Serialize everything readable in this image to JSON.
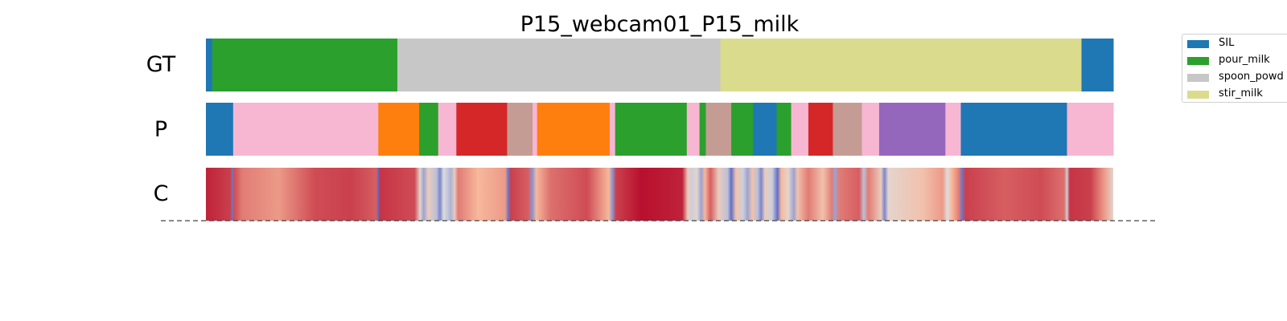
{
  "chart_data": {
    "type": "segmentation",
    "title": "P15_webcam01_P15_milk",
    "row_labels": {
      "gt": "GT",
      "pred": "P",
      "conf": "C"
    },
    "x_range": [
      0,
      1
    ],
    "legend": {
      "placement": "top-right, outside plot",
      "entries": [
        {
          "label": "SIL",
          "color": "#1f77b4"
        },
        {
          "label": "pour_milk",
          "color": "#2ca02c"
        },
        {
          "label": "spoon_powd",
          "color": "#c7c7c7"
        },
        {
          "label": "stir_milk",
          "color": "#dbdb8d"
        }
      ]
    },
    "colors": {
      "SIL": "#1f77b4",
      "pour_milk": "#2ca02c",
      "spoon_powd": "#c7c7c7",
      "stir_milk": "#dbdb8d",
      "orange": "#ff7f0e",
      "pink": "#f7b6d2",
      "red": "#d62728",
      "rosy": "#c49c94",
      "purple": "#9467bd",
      "conf_high": "#b40426",
      "conf_mid": "#f7b89c",
      "conf_low": "#3b4cc0"
    },
    "gt_segments": [
      {
        "start": 0.0,
        "end": 0.007,
        "color": "#1f77b4"
      },
      {
        "start": 0.007,
        "end": 0.211,
        "color": "#2ca02c"
      },
      {
        "start": 0.211,
        "end": 0.567,
        "color": "#c7c7c7"
      },
      {
        "start": 0.567,
        "end": 0.965,
        "color": "#dbdb8d"
      },
      {
        "start": 0.965,
        "end": 1.0,
        "color": "#1f77b4"
      }
    ],
    "pred_segments": [
      {
        "start": 0.0,
        "end": 0.03,
        "color": "#1f77b4"
      },
      {
        "start": 0.03,
        "end": 0.19,
        "color": "#f7b6d2"
      },
      {
        "start": 0.19,
        "end": 0.235,
        "color": "#ff7f0e"
      },
      {
        "start": 0.235,
        "end": 0.256,
        "color": "#2ca02c"
      },
      {
        "start": 0.256,
        "end": 0.276,
        "color": "#f7b6d2"
      },
      {
        "start": 0.276,
        "end": 0.332,
        "color": "#d62728"
      },
      {
        "start": 0.332,
        "end": 0.36,
        "color": "#c49c94"
      },
      {
        "start": 0.36,
        "end": 0.365,
        "color": "#f7b6d2"
      },
      {
        "start": 0.365,
        "end": 0.445,
        "color": "#ff7f0e"
      },
      {
        "start": 0.445,
        "end": 0.451,
        "color": "#f7b6d2"
      },
      {
        "start": 0.451,
        "end": 0.53,
        "color": "#2ca02c"
      },
      {
        "start": 0.53,
        "end": 0.544,
        "color": "#f7b6d2"
      },
      {
        "start": 0.544,
        "end": 0.551,
        "color": "#2ca02c"
      },
      {
        "start": 0.551,
        "end": 0.579,
        "color": "#c49c94"
      },
      {
        "start": 0.579,
        "end": 0.603,
        "color": "#2ca02c"
      },
      {
        "start": 0.603,
        "end": 0.629,
        "color": "#1f77b4"
      },
      {
        "start": 0.629,
        "end": 0.645,
        "color": "#2ca02c"
      },
      {
        "start": 0.645,
        "end": 0.664,
        "color": "#f7b6d2"
      },
      {
        "start": 0.664,
        "end": 0.691,
        "color": "#d62728"
      },
      {
        "start": 0.691,
        "end": 0.723,
        "color": "#c49c94"
      },
      {
        "start": 0.723,
        "end": 0.742,
        "color": "#f7b6d2"
      },
      {
        "start": 0.742,
        "end": 0.815,
        "color": "#9467bd"
      },
      {
        "start": 0.815,
        "end": 0.832,
        "color": "#f7b6d2"
      },
      {
        "start": 0.832,
        "end": 0.949,
        "color": "#1f77b4"
      },
      {
        "start": 0.949,
        "end": 1.0,
        "color": "#f7b6d2"
      }
    ],
    "confidence_stops": [
      [
        0.0,
        0.95
      ],
      [
        0.027,
        0.9
      ],
      [
        0.029,
        0.15
      ],
      [
        0.031,
        0.88
      ],
      [
        0.04,
        0.8
      ],
      [
        0.08,
        0.75
      ],
      [
        0.12,
        0.88
      ],
      [
        0.16,
        0.9
      ],
      [
        0.188,
        0.85
      ],
      [
        0.19,
        0.1
      ],
      [
        0.192,
        0.92
      ],
      [
        0.23,
        0.88
      ],
      [
        0.236,
        0.55
      ],
      [
        0.24,
        0.3
      ],
      [
        0.245,
        0.6
      ],
      [
        0.254,
        0.4
      ],
      [
        0.258,
        0.2
      ],
      [
        0.262,
        0.5
      ],
      [
        0.27,
        0.35
      ],
      [
        0.274,
        0.6
      ],
      [
        0.278,
        0.8
      ],
      [
        0.3,
        0.7
      ],
      [
        0.33,
        0.75
      ],
      [
        0.333,
        0.15
      ],
      [
        0.336,
        0.9
      ],
      [
        0.355,
        0.85
      ],
      [
        0.36,
        0.25
      ],
      [
        0.364,
        0.7
      ],
      [
        0.38,
        0.82
      ],
      [
        0.42,
        0.88
      ],
      [
        0.444,
        0.7
      ],
      [
        0.448,
        0.25
      ],
      [
        0.452,
        0.9
      ],
      [
        0.48,
        0.98
      ],
      [
        0.525,
        0.95
      ],
      [
        0.531,
        0.6
      ],
      [
        0.536,
        0.45
      ],
      [
        0.541,
        0.55
      ],
      [
        0.546,
        0.3
      ],
      [
        0.55,
        0.7
      ],
      [
        0.556,
        0.85
      ],
      [
        0.565,
        0.6
      ],
      [
        0.575,
        0.4
      ],
      [
        0.579,
        0.12
      ],
      [
        0.584,
        0.65
      ],
      [
        0.592,
        0.45
      ],
      [
        0.597,
        0.3
      ],
      [
        0.602,
        0.65
      ],
      [
        0.608,
        0.4
      ],
      [
        0.612,
        0.2
      ],
      [
        0.616,
        0.6
      ],
      [
        0.624,
        0.45
      ],
      [
        0.63,
        0.12
      ],
      [
        0.634,
        0.7
      ],
      [
        0.642,
        0.55
      ],
      [
        0.648,
        0.3
      ],
      [
        0.652,
        0.65
      ],
      [
        0.664,
        0.8
      ],
      [
        0.68,
        0.65
      ],
      [
        0.69,
        0.8
      ],
      [
        0.693,
        0.3
      ],
      [
        0.698,
        0.8
      ],
      [
        0.72,
        0.85
      ],
      [
        0.725,
        0.4
      ],
      [
        0.73,
        0.8
      ],
      [
        0.744,
        0.6
      ],
      [
        0.748,
        0.2
      ],
      [
        0.752,
        0.55
      ],
      [
        0.77,
        0.6
      ],
      [
        0.79,
        0.65
      ],
      [
        0.812,
        0.75
      ],
      [
        0.817,
        0.5
      ],
      [
        0.822,
        0.7
      ],
      [
        0.83,
        0.8
      ],
      [
        0.833,
        0.15
      ],
      [
        0.837,
        0.9
      ],
      [
        0.88,
        0.85
      ],
      [
        0.92,
        0.88
      ],
      [
        0.946,
        0.82
      ],
      [
        0.949,
        0.45
      ],
      [
        0.952,
        0.92
      ],
      [
        0.975,
        0.9
      ],
      [
        0.99,
        0.75
      ],
      [
        1.0,
        0.55
      ]
    ],
    "baseline": "dashed"
  }
}
